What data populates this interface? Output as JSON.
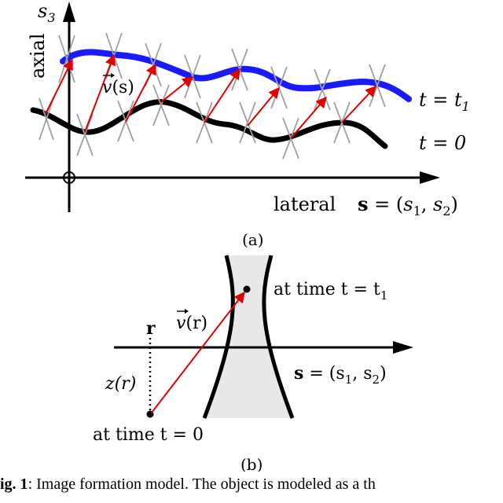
{
  "panel_a": {
    "axis_y_label": "s",
    "axis_y_sub": "3",
    "axial_label": "axial",
    "lateral_label": "lateral",
    "s_bold": "s",
    "s_eq_prefix": " = (",
    "s1": "s",
    "s1_sub": "1",
    "comma": ", ",
    "s2": "s",
    "s2_sub": "2",
    "close_paren": ")",
    "v_label": "v",
    "v_arg": "(s)",
    "curve_top_label": "t = t",
    "curve_top_sub": "1",
    "curve_bottom_label": "t = 0",
    "panel_label": "(a)",
    "colors": {
      "top_curve": "#1a1aff",
      "bottom_curve": "#000000",
      "arrows": "#e00000",
      "crosses": "#a0a0a0"
    }
  },
  "panel_b": {
    "r_label": "r",
    "z_label": "z(r)",
    "v_label": "v",
    "v_arg": "(r)",
    "time1_label": "at time t = t",
    "time1_sub": "1",
    "time0_label": "at time t = 0",
    "s_bold": "s",
    "s_eq_rest": " = (s",
    "s1_sub": "1",
    "mid": ", s",
    "s2_sub": "2",
    "close": ")",
    "panel_label": "(b)",
    "colors": {
      "fill": "#e8e8e8",
      "arrow": "#e00000"
    }
  },
  "caption": {
    "lead": "ig. 1",
    "text": ": Image formation model. The object is modeled as a th"
  }
}
